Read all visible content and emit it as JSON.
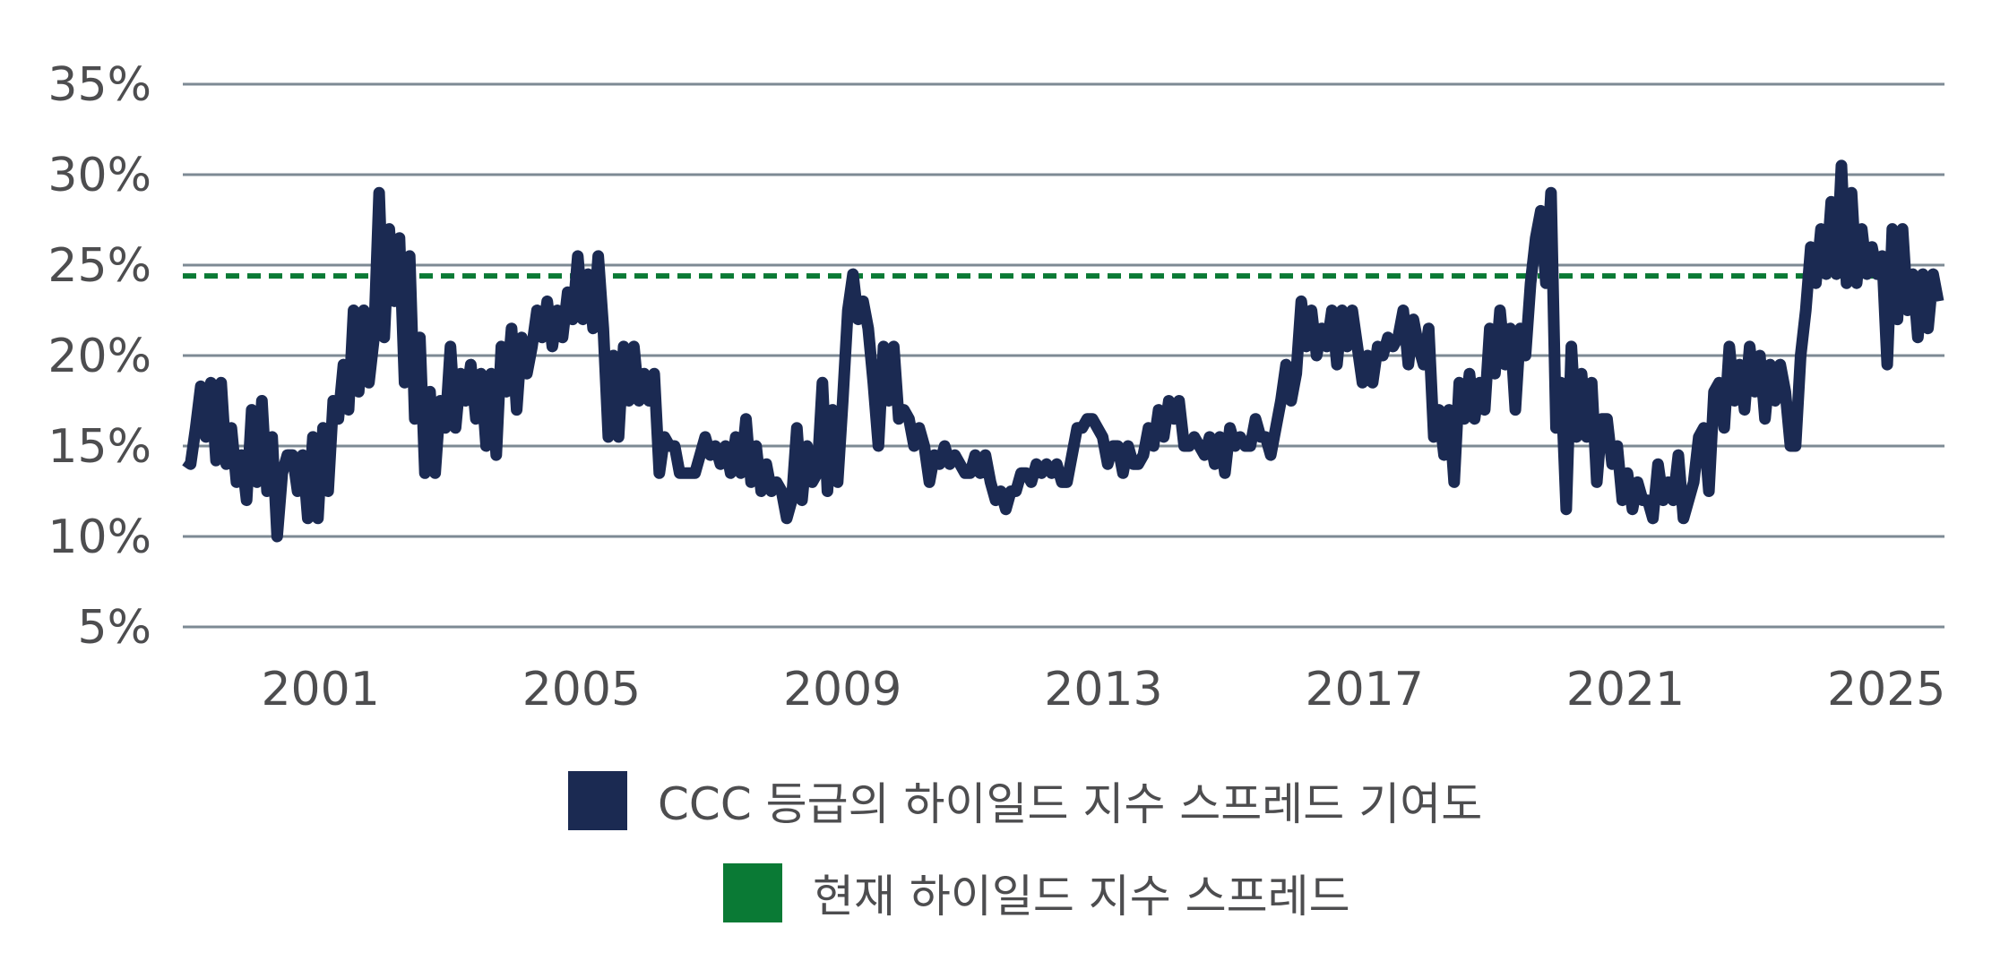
{
  "chart_data": {
    "type": "line",
    "title": "",
    "xlabel": "",
    "ylabel": "",
    "x_start": "1999-01",
    "x_end": "2025-12",
    "frequency": "monthly",
    "x_tick_labels": [
      "2001",
      "2005",
      "2009",
      "2013",
      "2017",
      "2021",
      "2025"
    ],
    "x_ticks": [
      2001,
      2005,
      2009,
      2013,
      2017,
      2021,
      2025
    ],
    "y_tick_labels": [
      "5%",
      "10%",
      "15%",
      "20%",
      "25%",
      "30%",
      "35%"
    ],
    "y_ticks": [
      5,
      10,
      15,
      20,
      25,
      30,
      35
    ],
    "ylim": [
      5,
      35
    ],
    "grid": "horizontal",
    "legend_placement": "bottom",
    "series": [
      {
        "name": "CCC 등급의 하이일드 지수 스프레드 기여도",
        "color": "#1b2a52",
        "values": [
          14.2,
          14,
          16,
          18.3,
          15.5,
          18.5,
          14.2,
          18.5,
          14,
          16,
          13,
          14.5,
          12,
          17,
          13,
          17.5,
          12.5,
          15.5,
          10,
          13.5,
          14.5,
          14.5,
          12.5,
          14.5,
          11,
          15.5,
          11,
          16,
          12.5,
          17.5,
          16.5,
          19.5,
          17,
          22.5,
          18,
          22.5,
          18.5,
          21,
          29,
          21,
          27,
          23,
          26.5,
          18.5,
          25.5,
          16.5,
          21,
          13.5,
          18,
          13.5,
          17.5,
          16,
          20.5,
          16,
          19,
          17.5,
          19.5,
          16.5,
          19,
          15,
          19,
          14.5,
          20.5,
          18,
          21.5,
          17,
          21,
          19,
          20.5,
          22.5,
          21,
          23,
          20.5,
          22.5,
          21,
          23.5,
          22,
          25.5,
          22,
          24.5,
          21.5,
          25.5,
          21.5,
          15.5,
          20,
          15.5,
          20.5,
          17.5,
          20.5,
          17.5,
          19,
          17.5,
          19,
          13.5,
          15.5,
          15,
          15,
          13.5,
          13.5,
          13.5,
          13.5,
          14.5,
          15.5,
          14.5,
          15,
          14,
          15,
          13.5,
          15.5,
          13.5,
          16.5,
          13,
          15,
          12.5,
          14,
          12.5,
          13,
          12.5,
          11,
          12,
          16,
          12,
          15,
          13,
          13.5,
          18.5,
          12.5,
          17,
          13,
          17.5,
          22.5,
          24.5,
          22,
          23,
          21.5,
          18.5,
          15,
          20.5,
          17.5,
          20.5,
          16.5,
          17,
          16.5,
          15,
          16,
          15,
          13,
          14.5,
          14,
          15,
          14,
          14.5,
          14,
          13.5,
          13.5,
          14.5,
          13.5,
          14.5,
          13,
          12,
          12.5,
          11.5,
          12.5,
          12.5,
          13.5,
          13.5,
          13,
          14,
          13.5,
          14,
          13.5,
          14,
          13,
          13,
          14.5,
          16,
          16,
          16.5,
          16.5,
          16,
          15.5,
          14,
          15,
          15,
          13.5,
          15,
          14,
          14,
          14.5,
          16,
          15,
          17,
          15.5,
          17.5,
          16.5,
          17.5,
          15,
          15,
          15.5,
          15,
          14.5,
          15.5,
          14,
          15.5,
          13.5,
          16,
          15,
          15.5,
          15,
          15,
          16.5,
          15.5,
          15.5,
          14.5,
          16,
          17.5,
          19.5,
          17.5,
          19,
          23,
          20.5,
          22.5,
          20,
          21.5,
          20.5,
          22.5,
          19.5,
          22.5,
          20.5,
          22.5,
          20.5,
          18.5,
          20,
          18.5,
          20.5,
          20,
          21,
          20.5,
          21,
          22.5,
          19.5,
          22,
          20.5,
          19.5,
          21.5,
          15.5,
          17,
          14.5,
          17,
          13,
          18.5,
          16.5,
          19,
          16.5,
          18.5,
          17,
          21.5,
          19,
          22.5,
          19.5,
          21.5,
          17,
          21.5,
          20,
          24,
          26.5,
          28,
          24,
          29,
          16,
          18.5,
          11.5,
          20.5,
          15.5,
          19,
          15.5,
          18.5,
          13,
          16.5,
          16.5,
          14,
          15,
          12,
          13.5,
          11.5,
          13,
          12,
          12,
          11,
          14,
          12,
          13,
          12,
          14.5,
          11,
          12,
          13,
          15.5,
          16,
          12.5,
          18,
          18.5,
          16,
          20.5,
          17.5,
          19.5,
          17,
          20.5,
          18,
          20,
          16.5,
          19.5,
          17.5,
          19.5,
          18,
          15,
          15,
          20,
          22.5,
          26,
          24,
          27,
          24.5,
          28.5,
          24.5,
          30.5,
          24,
          29,
          24,
          27,
          24.5,
          26,
          24.5,
          25.5,
          19.5,
          27,
          22,
          27,
          22.5,
          24.5,
          21,
          24.5,
          21.5,
          24.5,
          23
        ]
      },
      {
        "name": "현재 하이일드 지수 스프레드",
        "color": "#0a7a35",
        "style": "dashed",
        "value": 24.4
      }
    ]
  }
}
